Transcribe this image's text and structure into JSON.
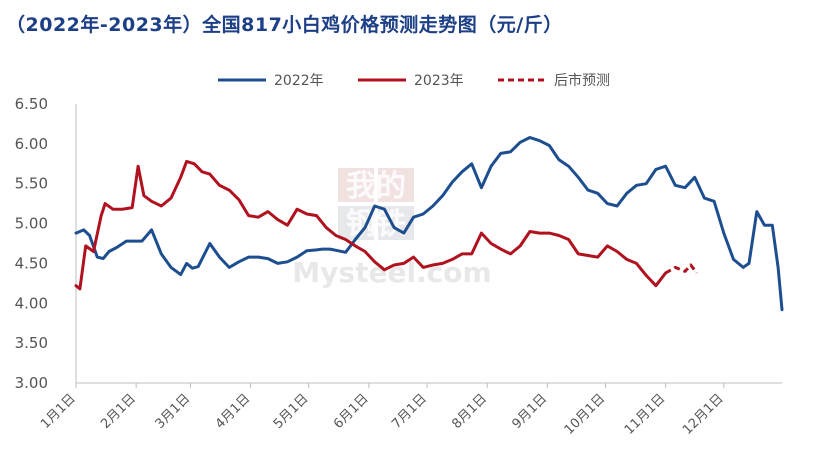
{
  "title": "（2022年-2023年）全国817小白鸡价格预测走势图（元/斤）",
  "watermark": {
    "line1": "我的",
    "line2": "钢铁",
    "line3": "Mysteel.com"
  },
  "chart_data": {
    "type": "line",
    "title": "（2022年-2023年）全国817小白鸡价格预测走势图（元/斤）",
    "xlabel": "",
    "ylabel": "",
    "ylim": [
      3.0,
      6.5
    ],
    "yticks": [
      "3.00",
      "3.50",
      "4.00",
      "4.50",
      "5.00",
      "5.50",
      "6.00",
      "6.50"
    ],
    "xticks": [
      "1月1日",
      "2月1日",
      "3月1日",
      "4月1日",
      "5月1日",
      "6月1日",
      "7月1日",
      "8月1日",
      "9月1日",
      "10月1日",
      "11月1日",
      "12月1日"
    ],
    "x_unit": "day of year (1 = 1月1日)",
    "legend_position": "top",
    "grid": false,
    "series": [
      {
        "name": "2022年",
        "color": "#1d4e8f",
        "style": "solid",
        "x": [
          1,
          5,
          8,
          12,
          15,
          18,
          22,
          27,
          30,
          35,
          40,
          45,
          50,
          55,
          58,
          61,
          64,
          70,
          75,
          80,
          85,
          90,
          95,
          100,
          105,
          110,
          115,
          120,
          125,
          128,
          132,
          136,
          140,
          145,
          150,
          155,
          160,
          165,
          170,
          175,
          180,
          185,
          190,
          195,
          200,
          205,
          210,
          215,
          220,
          225,
          230,
          235,
          240,
          245,
          250,
          255,
          260,
          265,
          270,
          275,
          280,
          285,
          290,
          295,
          300,
          305,
          310,
          315,
          320,
          325,
          330,
          335,
          340,
          345,
          348,
          352,
          356,
          360,
          363,
          365
        ],
        "values": [
          4.88,
          4.92,
          4.85,
          4.58,
          4.56,
          4.65,
          4.7,
          4.78,
          4.78,
          4.78,
          4.92,
          4.62,
          4.45,
          4.36,
          4.5,
          4.44,
          4.46,
          4.75,
          4.58,
          4.45,
          4.52,
          4.58,
          4.58,
          4.56,
          4.5,
          4.52,
          4.58,
          4.66,
          4.67,
          4.68,
          4.68,
          4.66,
          4.64,
          4.8,
          4.95,
          5.22,
          5.18,
          4.95,
          4.88,
          5.08,
          5.12,
          5.22,
          5.35,
          5.52,
          5.65,
          5.75,
          5.45,
          5.72,
          5.88,
          5.9,
          6.02,
          6.08,
          6.04,
          5.98,
          5.8,
          5.72,
          5.58,
          5.42,
          5.38,
          5.25,
          5.22,
          5.38,
          5.48,
          5.5,
          5.68,
          5.72,
          5.48,
          5.45,
          5.58,
          5.32,
          5.28,
          4.88,
          4.55,
          4.45,
          4.5,
          5.15,
          4.98,
          4.98,
          4.45,
          3.92
        ]
      },
      {
        "name": "2023年",
        "color": "#b0121f",
        "style": "solid",
        "x": [
          1,
          3,
          6,
          10,
          14,
          16,
          20,
          25,
          30,
          33,
          36,
          40,
          45,
          50,
          55,
          58,
          62,
          66,
          70,
          75,
          80,
          85,
          90,
          95,
          100,
          105,
          110,
          115,
          120,
          125,
          130,
          135,
          140,
          145,
          150,
          155,
          160,
          165,
          170,
          175,
          180,
          185,
          190,
          195,
          200,
          205,
          210,
          215,
          220,
          225,
          230,
          235,
          240,
          245,
          250,
          255,
          260,
          265,
          270,
          275,
          280,
          285,
          290,
          295,
          300,
          305
        ],
        "values": [
          4.22,
          4.18,
          4.72,
          4.65,
          5.1,
          5.25,
          5.18,
          5.18,
          5.2,
          5.72,
          5.35,
          5.28,
          5.22,
          5.32,
          5.58,
          5.78,
          5.75,
          5.65,
          5.62,
          5.48,
          5.42,
          5.3,
          5.1,
          5.08,
          5.15,
          5.05,
          4.98,
          5.18,
          5.12,
          5.1,
          4.95,
          4.85,
          4.8,
          4.72,
          4.65,
          4.52,
          4.42,
          4.48,
          4.5,
          4.58,
          4.45,
          4.48,
          4.5,
          4.55,
          4.62,
          4.62,
          4.88,
          4.75,
          4.68,
          4.62,
          4.72,
          4.9,
          4.88,
          4.88,
          4.85,
          4.8,
          4.62,
          4.6,
          4.58,
          4.72,
          4.65,
          4.55,
          4.5,
          4.35,
          4.22,
          4.38
        ]
      },
      {
        "name": "后市预测",
        "color": "#b0121f",
        "style": "dashed",
        "x": [
          305,
          310,
          315,
          318,
          321
        ],
        "values": [
          4.38,
          4.45,
          4.4,
          4.48,
          4.38
        ]
      }
    ]
  }
}
